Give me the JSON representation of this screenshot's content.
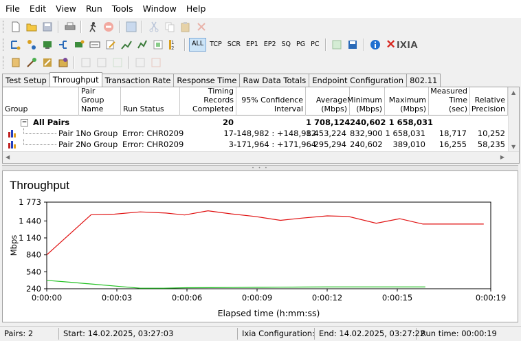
{
  "menu": [
    "File",
    "Edit",
    "View",
    "Run",
    "Tools",
    "Window",
    "Help"
  ],
  "filters": [
    "ALL",
    "TCP",
    "SCR",
    "EP1",
    "EP2",
    "SQ",
    "PG",
    "PC"
  ],
  "active_filter": "ALL",
  "logo_text": "IXIA",
  "tabs": [
    "Test Setup",
    "Throughput",
    "Transaction Rate",
    "Response Time",
    "Raw Data Totals",
    "Endpoint Configuration",
    "802.11"
  ],
  "active_tab": "Throughput",
  "grid": {
    "headers": {
      "group": "Group",
      "pair_group_name": "Pair Group Name",
      "run_status": "Run Status",
      "timing_records": "Timing Records Completed",
      "confidence": "95% Confidence Interval",
      "average": "Average (Mbps)",
      "minimum": "Minimum (Mbps)",
      "maximum": "Maximum (Mbps)",
      "measured_time": "Measured Time (sec)",
      "relative_precision": "Relative Precision"
    },
    "summary": {
      "expander": "−",
      "group": "All Pairs",
      "timing_records": "20",
      "average": "1 708,124",
      "minimum": "240,602",
      "maximum": "1 658,031"
    },
    "rows": [
      {
        "group": "Pair 1",
        "pair_group_name": "No Group",
        "run_status": "Error:  CHR0209",
        "timing_records": "17",
        "confidence": "-148,982 : +148,982",
        "average": "1 453,224",
        "minimum": "832,900",
        "maximum": "1 658,031",
        "measured_time": "18,717",
        "relative_precision": "10,252"
      },
      {
        "group": "Pair 2",
        "pair_group_name": "No Group",
        "run_status": "Error:  CHR0209",
        "timing_records": "3",
        "confidence": "-171,964 : +171,964",
        "average": "295,294",
        "minimum": "240,602",
        "maximum": "389,010",
        "measured_time": "16,255",
        "relative_precision": "58,235"
      }
    ]
  },
  "chart_data": {
    "type": "line",
    "title": "Throughput",
    "xlabel": "Elapsed time (h:mm:ss)",
    "ylabel": "Mbps",
    "xlim": [
      0,
      19
    ],
    "ylim": [
      240,
      1773
    ],
    "x_ticks": [
      0,
      3,
      6,
      9,
      12,
      15,
      19
    ],
    "x_tick_labels": [
      "0:00:00",
      "0:00:03",
      "0:00:06",
      "0:00:09",
      "0:00:12",
      "0:00:15",
      "0:00:19"
    ],
    "y_ticks": [
      240,
      540,
      840,
      1140,
      1440,
      1773
    ],
    "y_tick_labels": [
      "240",
      "540",
      "840",
      "1 140",
      "1 440",
      "1 773"
    ],
    "grid": false,
    "series": [
      {
        "color": "#e01010",
        "x": [
          0,
          1.9,
          2.9,
          4.0,
          5.1,
          5.9,
          6.9,
          7.9,
          8.9,
          10.0,
          10.9,
          12.0,
          12.9,
          14.1,
          15.1,
          16.1,
          17.1,
          18.7
        ],
        "y": [
          840,
          1550,
          1560,
          1600,
          1580,
          1545,
          1620,
          1565,
          1520,
          1450,
          1490,
          1530,
          1520,
          1400,
          1480,
          1385,
          1385,
          1385
        ]
      },
      {
        "color": "#22c022",
        "x": [
          0,
          1.0,
          2.0,
          3.0,
          4.0,
          5.0,
          6.0,
          7.0,
          8.0,
          9.0,
          10.0,
          11.0,
          12.0,
          13.0,
          14.0,
          15.0,
          16.2
        ],
        "y": [
          389,
          355,
          320,
          285,
          250,
          250,
          258,
          260,
          262,
          265,
          268,
          270,
          272,
          272,
          272,
          272,
          272
        ]
      }
    ]
  },
  "status": {
    "pairs": "Pairs: 2",
    "start": "Start: 14.02.2025, 03:27:03",
    "ixia_config": "Ixia Configuration:",
    "end": "End: 14.02.2025, 03:27:22",
    "run_time": "Run time: 00:00:19"
  }
}
